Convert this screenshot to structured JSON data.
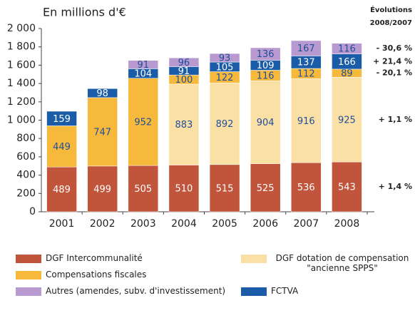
{
  "chart_data": {
    "type": "stacked_bar",
    "title": "En millions d'€",
    "annotation_title": "Évolutions 2008/2007",
    "categories": [
      "2001",
      "2002",
      "2003",
      "2004",
      "2005",
      "2006",
      "2007",
      "2008"
    ],
    "series": [
      {
        "name": "DGF Intercommunalité",
        "color": "#c0553b",
        "values": [
          489,
          499,
          505,
          510,
          515,
          525,
          536,
          543
        ]
      },
      {
        "name": "DGF dotation de compensation \"ancienne SPPS\"",
        "color": "#fbe0a6",
        "values": [
          null,
          null,
          null,
          883,
          892,
          904,
          916,
          925
        ]
      },
      {
        "name": "Compensations fiscales",
        "color": "#f6b93b",
        "values": [
          449,
          747,
          952,
          100,
          122,
          116,
          112,
          89
        ]
      },
      {
        "name": "FCTVA",
        "color": "#1b5ca8",
        "values": [
          159,
          98,
          104,
          91,
          105,
          109,
          137,
          166
        ]
      },
      {
        "name": "Autres (amendes, subv. d'investissement)",
        "color": "#b99ad0",
        "values": [
          null,
          null,
          91,
          96,
          93,
          136,
          167,
          116
        ]
      }
    ],
    "annotations": [
      "+ 1,4 %",
      "+ 1,1 %",
      "- 20,1 %",
      "+ 21,4 %",
      "- 30,6 %"
    ],
    "ylim": [
      0,
      2000
    ],
    "yticks": [
      0,
      200,
      400,
      600,
      800,
      {
        "value": 1000,
        "label": "1 000"
      },
      {
        "value": 1200,
        "label": "1 200"
      },
      {
        "value": 1400,
        "label": "1 400"
      },
      {
        "value": 1600,
        "label": "1 600"
      },
      {
        "value": 1800,
        "label": "1 800"
      },
      {
        "value": 2000,
        "label": "2 000"
      }
    ],
    "grid": false
  }
}
